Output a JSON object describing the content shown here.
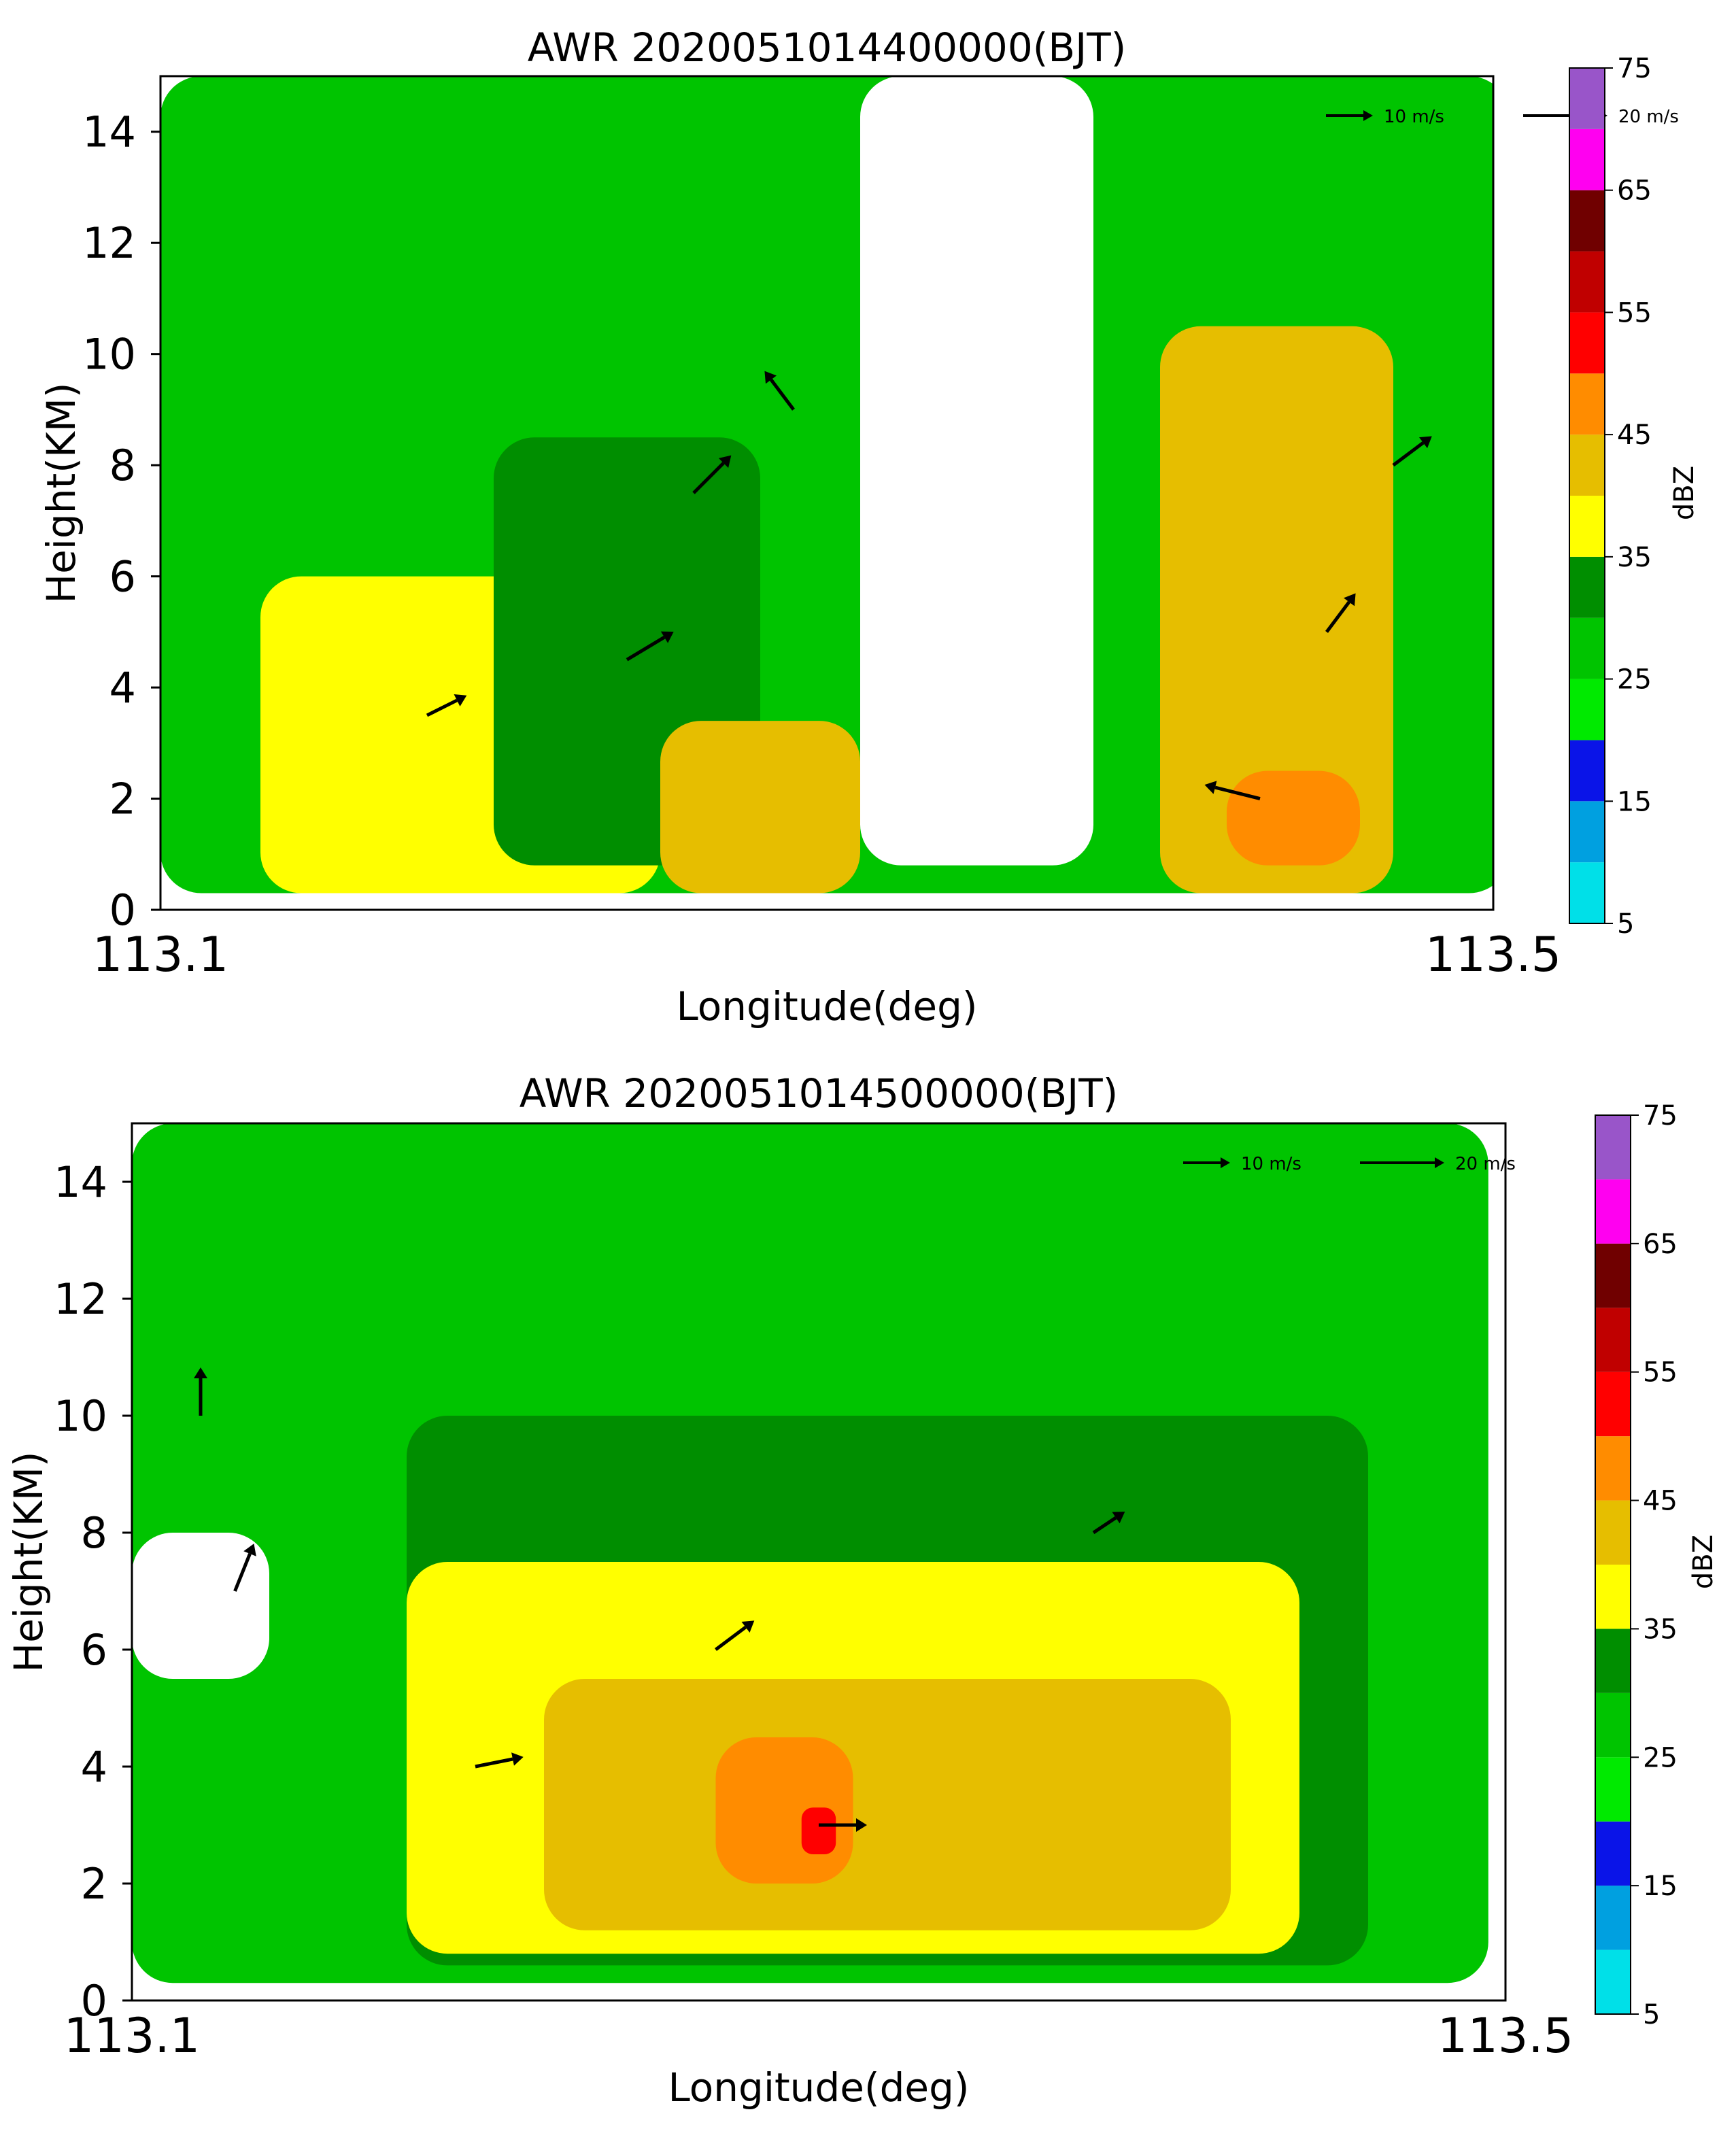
{
  "chart_data": [
    {
      "type": "heatmap",
      "title": "AWR 2020051014400000(BJT)",
      "xlabel": "Longitude(deg)",
      "ylabel": "Height(KM)",
      "xlim": [
        113.1,
        113.5
      ],
      "ylim": [
        0,
        15
      ],
      "x_tick_labels": [
        "113.1",
        "113.5"
      ],
      "y_tick_labels": [
        "0",
        "2",
        "4",
        "6",
        "8",
        "10",
        "12",
        "14"
      ],
      "y_ticks": [
        0,
        2,
        4,
        6,
        8,
        10,
        12,
        14
      ],
      "colorbar": {
        "label": "dBZ",
        "tick_labels": [
          "5",
          "15",
          "25",
          "35",
          "45",
          "55",
          "65",
          "75"
        ],
        "levels": [
          5,
          10,
          15,
          20,
          25,
          30,
          35,
          40,
          45,
          50,
          55,
          60,
          65,
          70,
          75
        ],
        "colors": [
          "#00e0e8",
          "#00a0e0",
          "#0a14e8",
          "#00ea00",
          "#00c400",
          "#008e00",
          "#ffff00",
          "#e6be00",
          "#ff8c00",
          "#ff0000",
          "#c00000",
          "#700000",
          "#ff00f0",
          "#9955c9"
        ]
      },
      "wind_reference": [
        {
          "label": "10",
          "unit": "m/s",
          "value": 10
        },
        {
          "label": "20",
          "unit": "m/s",
          "value": 20
        }
      ],
      "annotations": "hollow arrows marking airflow",
      "reflectivity_cells": [
        {
          "lon": 113.1,
          "lon_end": 113.505,
          "h": 0.3,
          "h_end": 15,
          "dbz": 25
        },
        {
          "lon": 113.13,
          "lon_end": 113.25,
          "h": 0.3,
          "h_end": 6,
          "dbz": 37
        },
        {
          "lon": 113.2,
          "lon_end": 113.28,
          "h": 0.8,
          "h_end": 8.5,
          "dbz": 32
        },
        {
          "lon": 113.25,
          "lon_end": 113.31,
          "h": 0.3,
          "h_end": 3.4,
          "dbz": 42
        },
        {
          "lon": 113.4,
          "lon_end": 113.47,
          "h": 0.3,
          "h_end": 10.5,
          "dbz": 40
        },
        {
          "lon": 113.42,
          "lon_end": 113.46,
          "h": 0.8,
          "h_end": 2.5,
          "dbz": 47
        },
        {
          "lon": 113.31,
          "lon_end": 113.38,
          "h": 0.8,
          "h_end": 15,
          "dbz": 3
        }
      ],
      "wind_vectors": [
        {
          "lon": 113.18,
          "h": 3.5,
          "u": 8,
          "w": 4
        },
        {
          "lon": 113.24,
          "h": 4.5,
          "u": 10,
          "w": 6
        },
        {
          "lon": 113.26,
          "h": 7.5,
          "u": 8,
          "w": 8
        },
        {
          "lon": 113.29,
          "h": 9.0,
          "u": -6,
          "w": 8
        },
        {
          "lon": 113.43,
          "h": 2.0,
          "u": -12,
          "w": 3
        },
        {
          "lon": 113.45,
          "h": 5.0,
          "u": 6,
          "w": 8
        },
        {
          "lon": 113.47,
          "h": 8.0,
          "u": 8,
          "w": 6
        }
      ]
    },
    {
      "type": "heatmap",
      "title": "AWR 2020051014500000(BJT)",
      "xlabel": "Longitude(deg)",
      "ylabel": "Height(KM)",
      "xlim": [
        113.1,
        113.5
      ],
      "ylim": [
        0,
        15
      ],
      "x_tick_labels": [
        "113.1",
        "113.5"
      ],
      "y_tick_labels": [
        "0",
        "2",
        "4",
        "6",
        "8",
        "10",
        "12",
        "14"
      ],
      "y_ticks": [
        0,
        2,
        4,
        6,
        8,
        10,
        12,
        14
      ],
      "colorbar": {
        "label": "dBZ",
        "tick_labels": [
          "5",
          "15",
          "25",
          "35",
          "45",
          "55",
          "65",
          "75"
        ],
        "levels": [
          5,
          10,
          15,
          20,
          25,
          30,
          35,
          40,
          45,
          50,
          55,
          60,
          65,
          70,
          75
        ],
        "colors": [
          "#00e0e8",
          "#00a0e0",
          "#0a14e8",
          "#00ea00",
          "#00c400",
          "#008e00",
          "#ffff00",
          "#e6be00",
          "#ff8c00",
          "#ff0000",
          "#c00000",
          "#700000",
          "#ff00f0",
          "#9955c9"
        ]
      },
      "wind_reference": [
        {
          "label": "10",
          "unit": "m/s",
          "value": 10
        },
        {
          "label": "20",
          "unit": "m/s",
          "value": 20
        }
      ],
      "reflectivity_cells": [
        {
          "lon": 113.1,
          "lon_end": 113.495,
          "h": 0.3,
          "h_end": 15,
          "dbz": 25
        },
        {
          "lon": 113.18,
          "lon_end": 113.46,
          "h": 0.6,
          "h_end": 10,
          "dbz": 32
        },
        {
          "lon": 113.18,
          "lon_end": 113.44,
          "h": 0.8,
          "h_end": 7.5,
          "dbz": 38
        },
        {
          "lon": 113.22,
          "lon_end": 113.42,
          "h": 1.2,
          "h_end": 5.5,
          "dbz": 42
        },
        {
          "lon": 113.27,
          "lon_end": 113.31,
          "h": 2.0,
          "h_end": 4.5,
          "dbz": 47
        },
        {
          "lon": 113.295,
          "lon_end": 113.305,
          "h": 2.5,
          "h_end": 3.3,
          "dbz": 52
        },
        {
          "lon": 113.1,
          "lon_end": 113.14,
          "h": 5.5,
          "h_end": 8.0,
          "dbz": 3
        }
      ],
      "wind_vectors": [
        {
          "lon": 113.12,
          "h": 10.0,
          "u": 0,
          "w": 10
        },
        {
          "lon": 113.13,
          "h": 7.0,
          "u": 4,
          "w": 10
        },
        {
          "lon": 113.2,
          "h": 4.0,
          "u": 10,
          "w": 2
        },
        {
          "lon": 113.27,
          "h": 6.0,
          "u": 8,
          "w": 6
        },
        {
          "lon": 113.3,
          "h": 3.0,
          "u": 10,
          "w": 0
        },
        {
          "lon": 113.38,
          "h": 8.0,
          "u": 6,
          "w": 4
        }
      ]
    }
  ]
}
